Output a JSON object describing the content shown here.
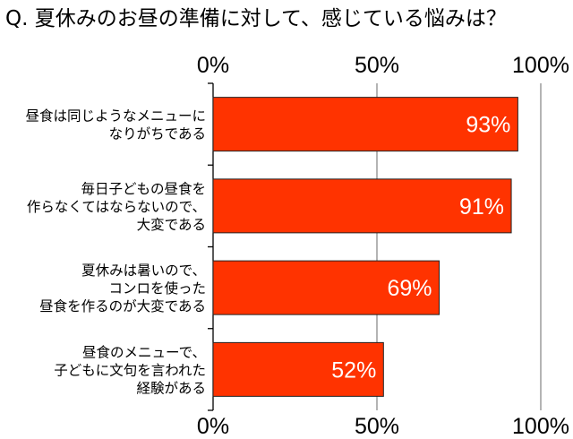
{
  "chart_data": {
    "type": "bar",
    "orientation": "horizontal",
    "title": "Q. 夏休みのお昼の準備に対して、感じている悩みは？",
    "xlabel": "",
    "ylabel": "",
    "xlim": [
      0,
      100
    ],
    "x_ticks": [
      "0%",
      "50%",
      "100%"
    ],
    "tick_labels_position": "top and bottom",
    "grid": true,
    "categories": [
      [
        "昼食は同じようなメニューに",
        "なりがちである"
      ],
      [
        "毎日子どもの昼食を",
        "作らなくてはならないので、",
        "大変である"
      ],
      [
        "夏休みは暑いので、",
        "コンロを使った",
        "昼食を作るのが大変である"
      ],
      [
        "昼食のメニューで、",
        "子どもに文句を言われた",
        "経験がある"
      ]
    ],
    "values": [
      93,
      91,
      69,
      52
    ],
    "value_labels": [
      "93%",
      "91%",
      "69%",
      "52%"
    ],
    "colors": {
      "bar": "#ff3300",
      "bar_edge": "#222222",
      "grid": "#8c8c8c",
      "value_text": "#ffffff"
    }
  }
}
